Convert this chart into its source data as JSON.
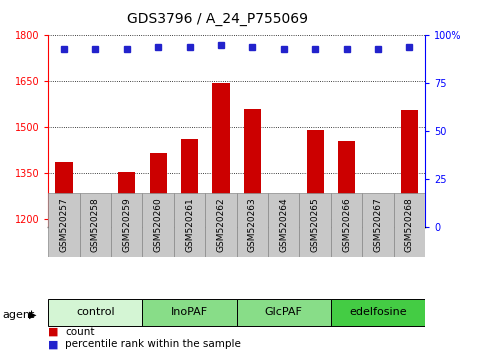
{
  "title": "GDS3796 / A_24_P755069",
  "samples": [
    "GSM520257",
    "GSM520258",
    "GSM520259",
    "GSM520260",
    "GSM520261",
    "GSM520262",
    "GSM520263",
    "GSM520264",
    "GSM520265",
    "GSM520266",
    "GSM520267",
    "GSM520268"
  ],
  "counts": [
    1385,
    1205,
    1355,
    1415,
    1460,
    1645,
    1560,
    1225,
    1490,
    1455,
    1240,
    1555
  ],
  "percentiles": [
    93,
    93,
    93,
    94,
    94,
    95,
    94,
    93,
    93,
    93,
    93,
    94
  ],
  "ylim_left": [
    1175,
    1800
  ],
  "ylim_right": [
    0,
    100
  ],
  "yticks_left": [
    1200,
    1350,
    1500,
    1650,
    1800
  ],
  "yticks_right": [
    0,
    25,
    50,
    75,
    100
  ],
  "bar_color": "#cc0000",
  "dot_color": "#2222cc",
  "plot_bg": "#ffffff",
  "xticklabel_bg": "#c8c8c8",
  "groups": [
    {
      "label": "control",
      "start": 0,
      "end": 3,
      "color": "#d4f5d4"
    },
    {
      "label": "InoPAF",
      "start": 3,
      "end": 6,
      "color": "#88dd88"
    },
    {
      "label": "GlcPAF",
      "start": 6,
      "end": 9,
      "color": "#88dd88"
    },
    {
      "label": "edelfosine",
      "start": 9,
      "end": 12,
      "color": "#44cc44"
    }
  ],
  "bar_width": 0.55,
  "dot_size": 5,
  "title_fontsize": 10,
  "tick_fontsize": 7,
  "label_fontsize": 8,
  "legend_fontsize": 7.5,
  "xticklabel_fontsize": 6.5,
  "group_label_fontsize": 8
}
